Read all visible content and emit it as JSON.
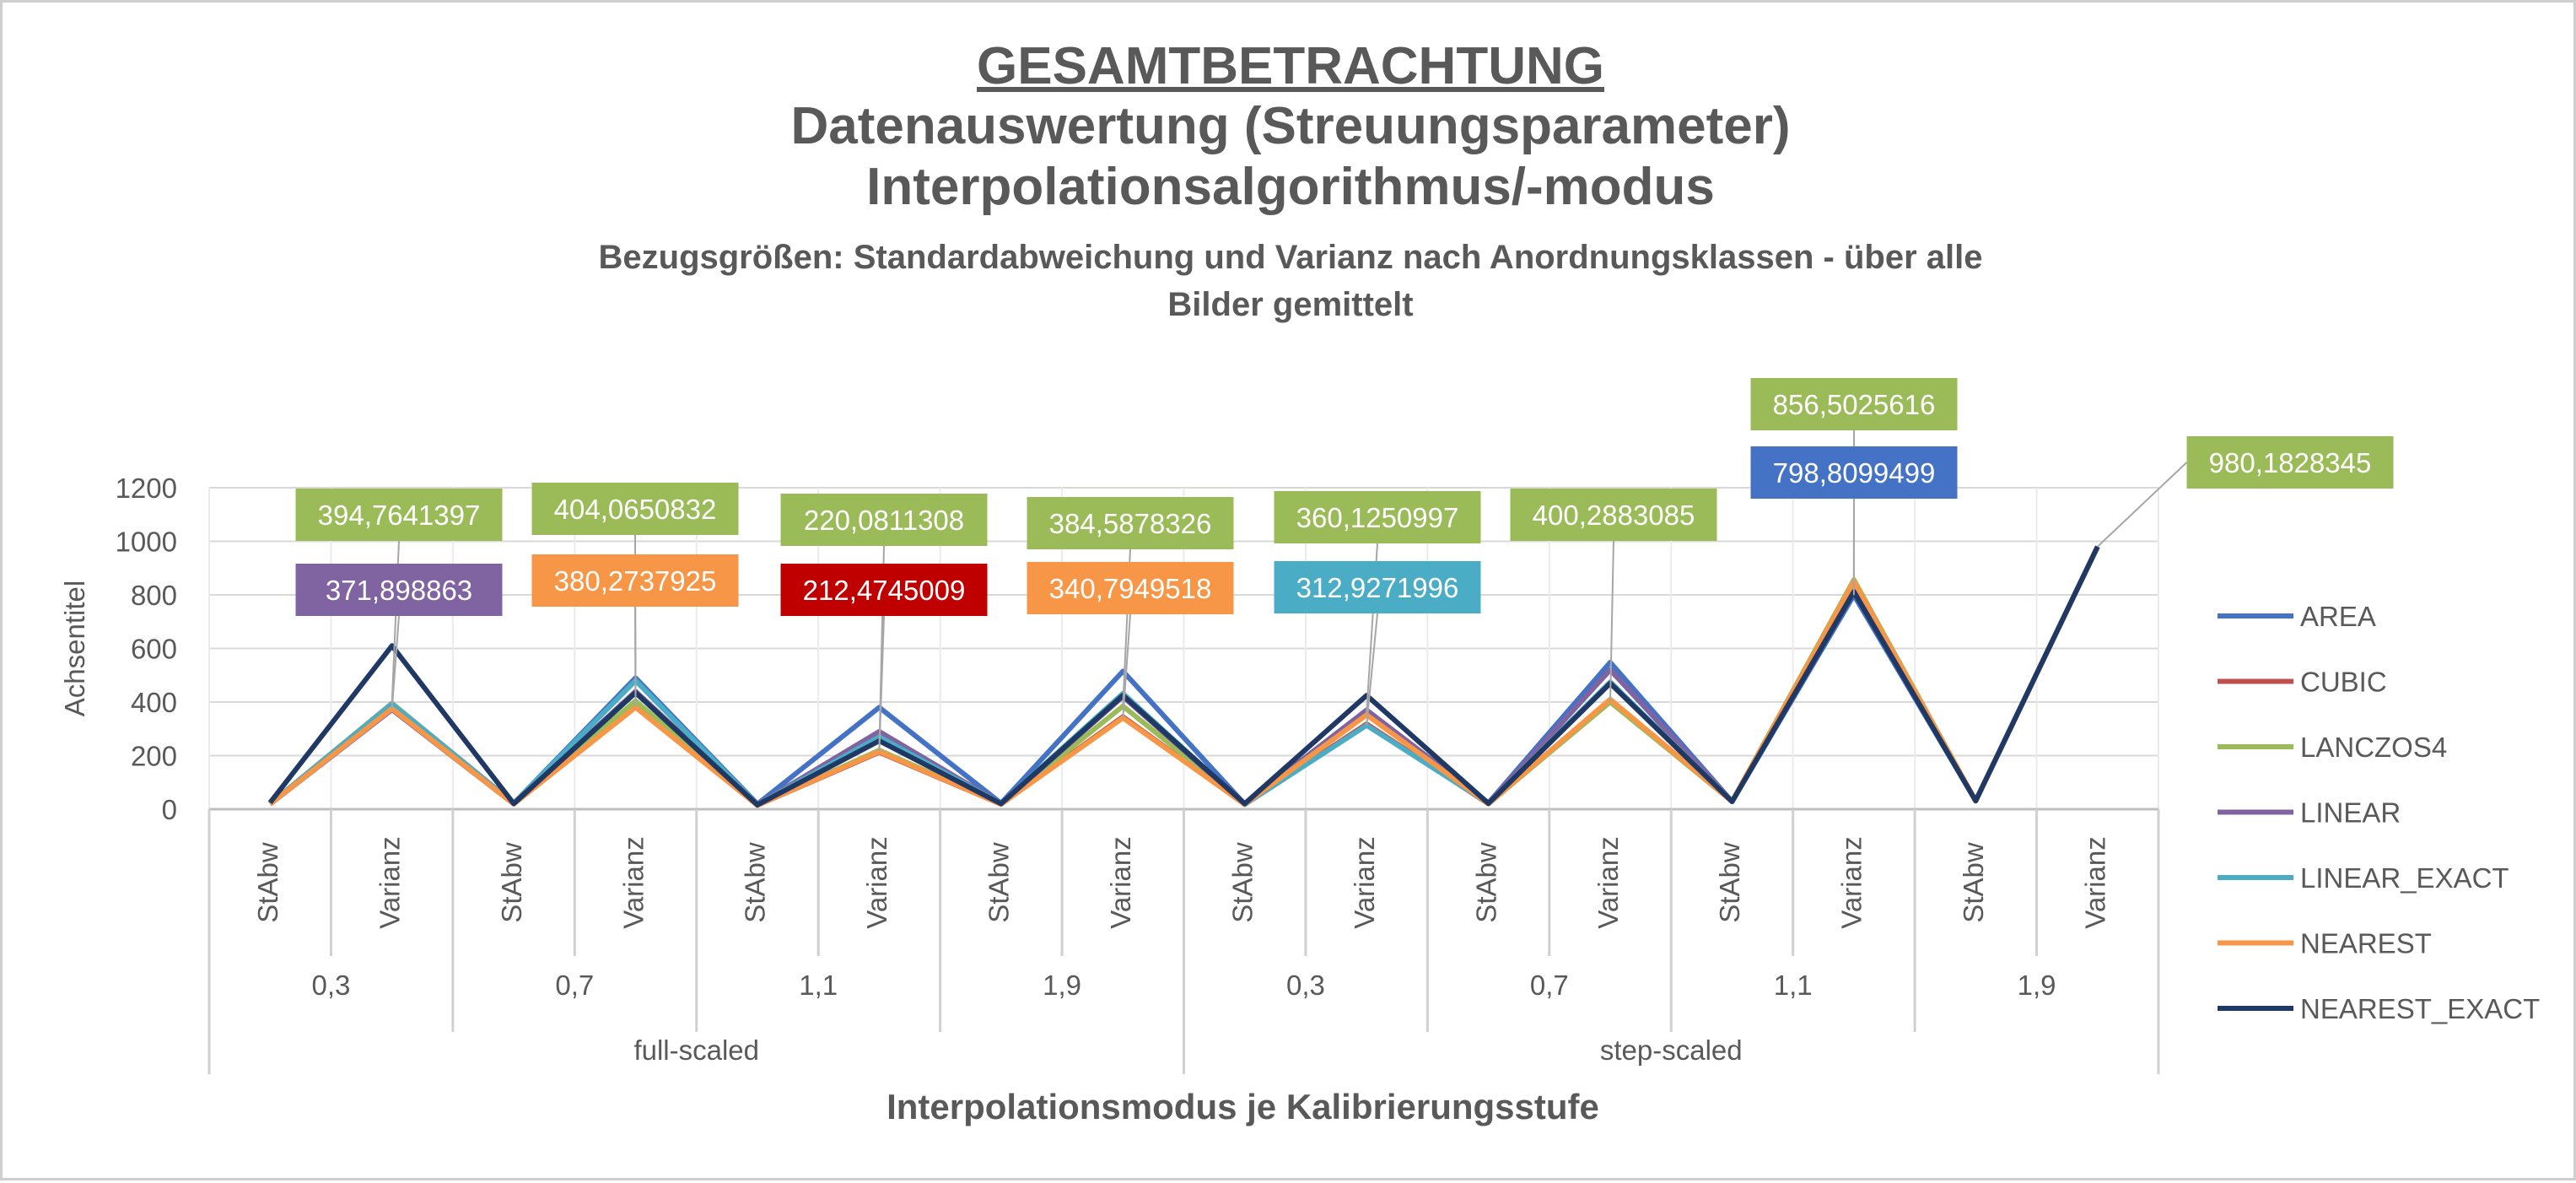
{
  "chart_data": {
    "type": "line",
    "title": "GESAMTBETRACHTUNG",
    "title_lines": [
      "Datenauswertung (Streuungsparameter)",
      "Interpolationsalgorithmus/-modus"
    ],
    "subtitle_lines": [
      "Bezugsgrößen:  Standardabweichung und Varianz nach Anordnungsklassen - über alle",
      "Bilder gemittelt"
    ],
    "xlabel": "Interpolationsmodus je Kalibrierungsstufe",
    "ylabel": "Achsentitel",
    "ylim": [
      0,
      1200
    ],
    "yticks": [
      "0",
      "200",
      "400",
      "600",
      "800",
      "1000",
      "1200"
    ],
    "grid": true,
    "legend_position": "right",
    "categories": [
      "StAbw",
      "Varianz",
      "StAbw",
      "Varianz",
      "StAbw",
      "Varianz",
      "StAbw",
      "Varianz",
      "StAbw",
      "Varianz",
      "StAbw",
      "Varianz",
      "StAbw",
      "Varianz",
      "StAbw",
      "Varianz"
    ],
    "level2": [
      "0,3",
      "0,7",
      "1,1",
      "1,9",
      "0,3",
      "0,7",
      "1,1",
      "1,9"
    ],
    "level3": [
      "full-scaled",
      "step-scaled"
    ],
    "series": [
      {
        "name": "AREA",
        "color": "#4472C4",
        "values": [
          19.9,
          395,
          22.0,
          490,
          19.5,
          380,
          22.5,
          515,
          19.0,
          355,
          23.5,
          548,
          28.3,
          799,
          31.3,
          980
        ]
      },
      {
        "name": "CUBIC",
        "color": "#C0504D",
        "values": [
          19.2,
          372,
          19.6,
          385,
          14.6,
          212.47,
          18.6,
          345,
          17.8,
          318,
          20.0,
          404,
          28.7,
          825,
          31.3,
          980
        ]
      },
      {
        "name": "LANCZOS4",
        "color": "#9BBB59",
        "values": [
          19.9,
          394.76,
          20.1,
          404.07,
          14.8,
          220.08,
          19.6,
          384.59,
          19.0,
          360.13,
          20.0,
          400.29,
          29.3,
          856.5,
          31.3,
          980
        ]
      },
      {
        "name": "LINEAR",
        "color": "#8064A2",
        "values": [
          19.3,
          371.9,
          21.0,
          440,
          17.0,
          290,
          20.5,
          420,
          19.2,
          370,
          22.8,
          520,
          28.9,
          835,
          31.3,
          980
        ]
      },
      {
        "name": "LINEAR_EXACT",
        "color": "#4BACC6",
        "values": [
          19.8,
          392,
          21.9,
          480,
          16.4,
          270,
          20.8,
          432,
          17.7,
          312.93,
          21.8,
          475,
          28.6,
          820,
          31.3,
          980
        ]
      },
      {
        "name": "NEAREST",
        "color": "#F79646",
        "values": [
          19.4,
          375,
          19.5,
          380.27,
          14.6,
          215,
          18.5,
          340.79,
          18.8,
          352,
          20.2,
          410,
          29.2,
          850,
          31.3,
          980
        ]
      },
      {
        "name": "NEAREST_EXACT",
        "color": "#1F3864",
        "values": [
          24.7,
          610,
          20.9,
          435,
          16.0,
          255,
          20.6,
          425,
          20.6,
          425,
          21.7,
          470,
          28.5,
          812,
          31.3,
          980.18
        ]
      }
    ],
    "data_labels": [
      {
        "text": "394,7641397",
        "series": "LANCZOS4",
        "index": 1,
        "color": "#9BBB59"
      },
      {
        "text": "371,898863",
        "series": "LINEAR",
        "index": 1,
        "color": "#8064A2"
      },
      {
        "text": "404,0650832",
        "series": "LANCZOS4",
        "index": 3,
        "color": "#9BBB59"
      },
      {
        "text": "380,2737925",
        "series": "NEAREST",
        "index": 3,
        "color": "#F79646"
      },
      {
        "text": "220,0811308",
        "series": "LANCZOS4",
        "index": 5,
        "color": "#9BBB59"
      },
      {
        "text": "212,4745009",
        "series": "CUBIC",
        "index": 5,
        "color": "#C00000"
      },
      {
        "text": "384,5878326",
        "series": "LANCZOS4",
        "index": 7,
        "color": "#9BBB59"
      },
      {
        "text": "340,7949518",
        "series": "NEAREST",
        "index": 7,
        "color": "#F79646"
      },
      {
        "text": "360,1250997",
        "series": "LANCZOS4",
        "index": 9,
        "color": "#9BBB59"
      },
      {
        "text": "312,9271996",
        "series": "LINEAR_EXACT",
        "index": 9,
        "color": "#4BACC6"
      },
      {
        "text": "400,2883085",
        "series": "LANCZOS4",
        "index": 11,
        "color": "#9BBB59"
      },
      {
        "text": "856,5025616",
        "series": "LANCZOS4",
        "index": 13,
        "color": "#9BBB59"
      },
      {
        "text": "798,8099499",
        "series": "AREA",
        "index": 13,
        "color": "#4472C4"
      },
      {
        "text": "980,1828345",
        "series": "NEAREST_EXACT",
        "index": 15,
        "color": "#9BBB59"
      }
    ]
  }
}
